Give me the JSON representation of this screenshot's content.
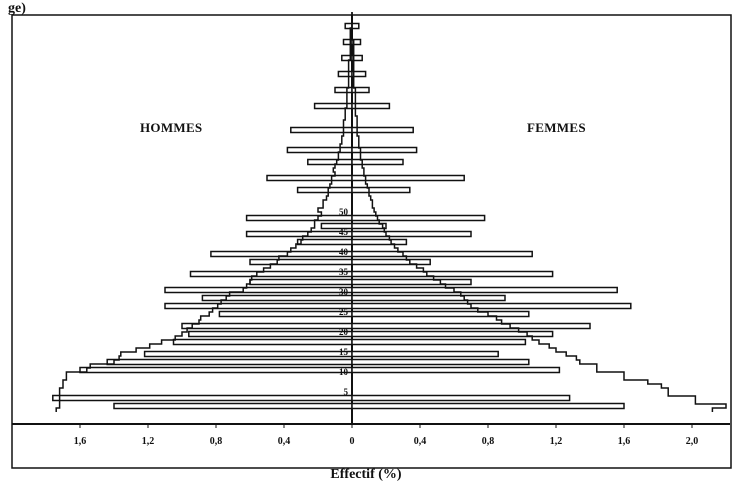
{
  "title_fragment": "ge)",
  "chart_data": {
    "type": "bar",
    "orientation": "horizontal",
    "subtype": "population-pyramid",
    "xlabel": "Effectif (%)",
    "left_label": "HOMMES",
    "right_label": "FEMMES",
    "x_ticks": [
      "1,6",
      "1,2",
      "0,8",
      "0,4",
      "0",
      "0,4",
      "0,8",
      "1,2",
      "1,6",
      "2,0"
    ],
    "x_tick_values": [
      -1.6,
      -1.2,
      -0.8,
      -0.4,
      0,
      0.4,
      0.8,
      1.2,
      1.6,
      2.0
    ],
    "xlim": [
      -1.75,
      2.25
    ],
    "age_ticks": [
      "5",
      "10",
      "15",
      "20",
      "25",
      "30",
      "35",
      "40",
      "45",
      "50"
    ],
    "age_tick_values": [
      5,
      10,
      15,
      20,
      25,
      30,
      35,
      40,
      45,
      50
    ],
    "ylim": [
      0,
      100
    ],
    "series": [
      {
        "name": "HOMMES",
        "x": [
          0,
          1,
          2,
          3,
          4,
          5,
          6,
          7,
          8,
          9,
          10,
          11,
          12,
          13,
          14,
          15,
          16,
          17,
          18,
          19,
          20,
          21,
          22,
          23,
          24,
          25,
          26,
          27,
          28,
          29,
          30,
          31,
          32,
          33,
          34,
          35,
          36,
          37,
          38,
          39,
          40,
          41,
          42,
          43,
          44,
          45,
          46,
          47,
          48,
          49,
          50,
          51,
          52,
          53,
          54,
          55,
          56,
          57,
          58,
          59,
          60,
          61,
          62,
          63,
          64,
          65,
          66,
          67,
          68,
          69,
          70,
          71,
          72,
          73,
          74,
          75,
          76,
          77,
          78,
          79,
          80,
          81,
          82,
          83,
          84,
          85,
          86,
          87,
          88,
          89,
          90,
          91,
          92,
          93,
          94,
          95,
          96,
          97,
          98,
          99
        ],
        "values": [
          1.74,
          1.72,
          1.72,
          1.72,
          1.72,
          1.72,
          1.7,
          1.7,
          1.68,
          1.68,
          1.56,
          1.54,
          1.4,
          1.37,
          1.36,
          1.27,
          1.19,
          1.12,
          1.04,
          1.0,
          0.97,
          0.94,
          0.9,
          0.89,
          0.84,
          0.82,
          0.79,
          0.77,
          0.74,
          0.72,
          0.64,
          0.62,
          0.6,
          0.59,
          0.56,
          0.52,
          0.48,
          0.44,
          0.43,
          0.38,
          0.36,
          0.33,
          0.3,
          0.29,
          0.26,
          0.24,
          0.22,
          0.22,
          0.2,
          0.18,
          0.2,
          0.17,
          0.17,
          0.15,
          0.14,
          0.14,
          0.13,
          0.12,
          0.12,
          0.1,
          0.11,
          0.1,
          0.09,
          0.08,
          0.08,
          0.07,
          0.07,
          0.06,
          0.06,
          0.05,
          0.05,
          0.05,
          0.05,
          0.04,
          0.04,
          0.04,
          0.03,
          0.03,
          0.03,
          0.03,
          0.03,
          0.02,
          0.02,
          0.02,
          0.02,
          0.02,
          0.02,
          0.02,
          0.01,
          0.01,
          0.01,
          0.01,
          0.01,
          0.01,
          0.01,
          0.01,
          0.0,
          0.0,
          0.0,
          0.0
        ]
      },
      {
        "name": "FEMMES",
        "x": [
          0,
          1,
          2,
          3,
          4,
          5,
          6,
          7,
          8,
          9,
          10,
          11,
          12,
          13,
          14,
          15,
          16,
          17,
          18,
          19,
          20,
          21,
          22,
          23,
          24,
          25,
          26,
          27,
          28,
          29,
          30,
          31,
          32,
          33,
          34,
          35,
          36,
          37,
          38,
          39,
          40,
          41,
          42,
          43,
          44,
          45,
          46,
          47,
          48,
          49,
          50,
          51,
          52,
          53,
          54,
          55,
          56,
          57,
          58,
          59,
          60,
          61,
          62,
          63,
          64,
          65,
          66,
          67,
          68,
          69,
          70,
          71,
          72,
          73,
          74,
          75,
          76,
          77,
          78,
          79,
          80,
          81,
          82,
          83,
          84,
          85,
          86,
          87,
          88,
          89,
          90,
          91,
          92,
          93,
          94,
          95,
          96,
          97,
          98,
          99
        ],
        "values": [
          2.12,
          2.2,
          2.02,
          2.02,
          1.86,
          1.86,
          1.82,
          1.74,
          1.6,
          1.6,
          1.44,
          1.44,
          1.34,
          1.32,
          1.26,
          1.2,
          1.16,
          1.1,
          1.06,
          1.03,
          0.98,
          0.93,
          0.88,
          0.85,
          0.8,
          0.74,
          0.7,
          0.68,
          0.66,
          0.64,
          0.6,
          0.55,
          0.52,
          0.48,
          0.44,
          0.42,
          0.38,
          0.34,
          0.32,
          0.3,
          0.27,
          0.25,
          0.23,
          0.22,
          0.2,
          0.19,
          0.18,
          0.16,
          0.15,
          0.14,
          0.13,
          0.12,
          0.12,
          0.11,
          0.1,
          0.1,
          0.09,
          0.08,
          0.08,
          0.07,
          0.07,
          0.06,
          0.06,
          0.05,
          0.05,
          0.05,
          0.04,
          0.04,
          0.04,
          0.03,
          0.03,
          0.03,
          0.03,
          0.03,
          0.02,
          0.02,
          0.02,
          0.02,
          0.02,
          0.02,
          0.02,
          0.01,
          0.01,
          0.01,
          0.01,
          0.01,
          0.01,
          0.01,
          0.01,
          0.01,
          0.01,
          0.01,
          0.01,
          0.0,
          0.0,
          0.0,
          0.0,
          0.0,
          0.0,
          0.0
        ]
      }
    ],
    "heaped_ages": [
      {
        "age": 1,
        "hommes": 1.4,
        "femmes": 1.6
      },
      {
        "age": 3,
        "hommes": 1.76,
        "femmes": 1.28
      },
      {
        "age": 10,
        "hommes": 1.6,
        "femmes": 1.22
      },
      {
        "age": 12,
        "hommes": 1.44,
        "femmes": 1.04
      },
      {
        "age": 14,
        "hommes": 1.22,
        "femmes": 0.86
      },
      {
        "age": 17,
        "hommes": 1.05,
        "femmes": 1.02
      },
      {
        "age": 19,
        "hommes": 0.96,
        "femmes": 1.18
      },
      {
        "age": 21,
        "hommes": 1.0,
        "femmes": 1.4
      },
      {
        "age": 24,
        "hommes": 0.78,
        "femmes": 1.04
      },
      {
        "age": 26,
        "hommes": 1.1,
        "femmes": 1.64
      },
      {
        "age": 28,
        "hommes": 0.88,
        "femmes": 0.9
      },
      {
        "age": 30,
        "hommes": 1.1,
        "femmes": 1.56
      },
      {
        "age": 32,
        "hommes": 0.6,
        "femmes": 0.7
      },
      {
        "age": 34,
        "hommes": 0.95,
        "femmes": 1.18
      },
      {
        "age": 37,
        "hommes": 0.6,
        "femmes": 0.46
      },
      {
        "age": 39,
        "hommes": 0.83,
        "femmes": 1.06
      },
      {
        "age": 42,
        "hommes": 0.32,
        "femmes": 0.32
      },
      {
        "age": 44,
        "hommes": 0.62,
        "femmes": 0.7
      },
      {
        "age": 46,
        "hommes": 0.18,
        "femmes": 0.2
      },
      {
        "age": 48,
        "hommes": 0.62,
        "femmes": 0.78
      },
      {
        "age": 55,
        "hommes": 0.32,
        "femmes": 0.34
      },
      {
        "age": 58,
        "hommes": 0.5,
        "femmes": 0.66
      },
      {
        "age": 62,
        "hommes": 0.26,
        "femmes": 0.3
      },
      {
        "age": 65,
        "hommes": 0.38,
        "femmes": 0.38
      },
      {
        "age": 70,
        "hommes": 0.36,
        "femmes": 0.36
      },
      {
        "age": 76,
        "hommes": 0.22,
        "femmes": 0.22
      },
      {
        "age": 80,
        "hommes": 0.1,
        "femmes": 0.1
      },
      {
        "age": 84,
        "hommes": 0.08,
        "femmes": 0.08
      },
      {
        "age": 88,
        "hommes": 0.06,
        "femmes": 0.06
      },
      {
        "age": 92,
        "hommes": 0.05,
        "femmes": 0.05
      },
      {
        "age": 96,
        "hommes": 0.04,
        "femmes": 0.04
      }
    ],
    "grid": false,
    "legend": "none"
  }
}
